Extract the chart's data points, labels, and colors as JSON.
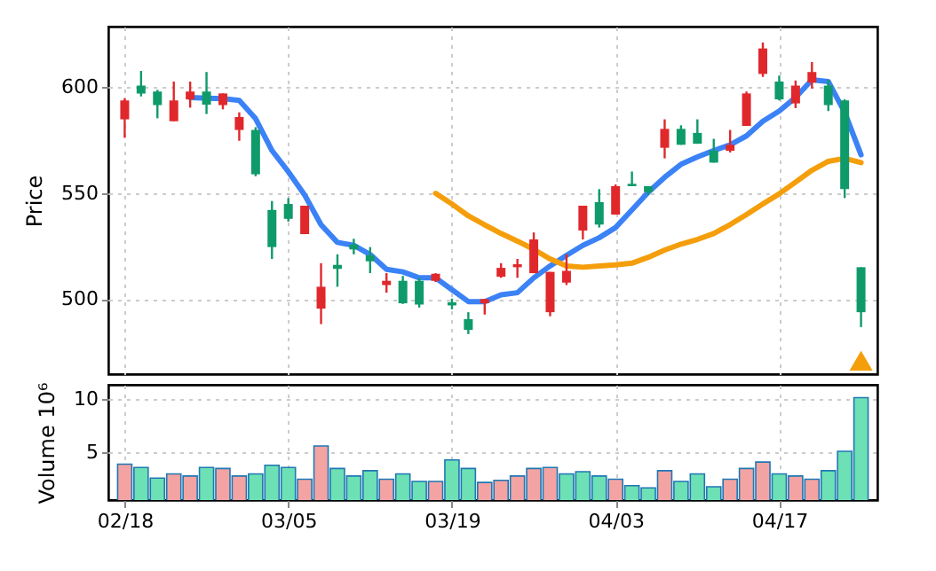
{
  "chart_data": [
    {
      "type": "candlestick",
      "ylabel": "Price",
      "categories": [
        null,
        null,
        null,
        null,
        null,
        null,
        null,
        null,
        null,
        null,
        null,
        null,
        null,
        null,
        null,
        null,
        null,
        null,
        null,
        null,
        null,
        null,
        null,
        null,
        null,
        null,
        null,
        null,
        null,
        null,
        null,
        null,
        null,
        null,
        null,
        null,
        null,
        null,
        null,
        null,
        null,
        null,
        null,
        null,
        null,
        null
      ],
      "ohlc": [
        [
          584.7,
          594.7,
          576.0,
          593.6
        ],
        [
          600.6,
          607.5,
          595.5,
          596.9
        ],
        [
          597.8,
          598.6,
          585.2,
          591.4
        ],
        [
          583.8,
          602.5,
          583.8,
          593.6
        ],
        [
          594.1,
          602.5,
          590.2,
          597.8
        ],
        [
          597.8,
          607.0,
          587.2,
          591.6
        ],
        [
          591.4,
          596.9,
          589.4,
          596.9
        ],
        [
          579.7,
          588.0,
          574.6,
          585.8
        ],
        [
          579.7,
          581.0,
          557.9,
          558.8
        ],
        [
          542.0,
          546.2,
          518.9,
          524.5
        ],
        [
          544.8,
          547.6,
          536.5,
          537.8
        ],
        [
          530.6,
          544.0,
          530.6,
          544.0
        ],
        [
          495.5,
          516.9,
          488.2,
          505.8
        ],
        [
          516.1,
          521.1,
          505.8,
          514.2
        ],
        [
          525.6,
          528.4,
          521.1,
          523.4
        ],
        [
          520.6,
          524.5,
          512.2,
          517.8
        ],
        [
          506.6,
          512.2,
          503.0,
          508.6
        ],
        [
          508.6,
          510.9,
          497.7,
          498.0
        ],
        [
          508.6,
          510.0,
          496.0,
          497.4
        ],
        [
          508.6,
          512.2,
          508.0,
          511.9
        ],
        [
          498.5,
          500.2,
          495.2,
          497.0
        ],
        [
          490.5,
          493.8,
          483.5,
          485.5
        ],
        [
          498.0,
          500.0,
          492.7,
          500.0
        ],
        [
          510.5,
          516.9,
          510.0,
          514.7
        ],
        [
          515.0,
          518.9,
          510.0,
          516.4
        ],
        [
          512.2,
          531.4,
          512.2,
          528.1
        ],
        [
          493.8,
          512.8,
          491.9,
          512.8
        ],
        [
          507.7,
          521.1,
          506.6,
          513.3
        ],
        [
          532.3,
          544.0,
          528.1,
          544.0
        ],
        [
          545.7,
          551.8,
          533.7,
          535.1
        ],
        [
          539.8,
          554.0,
          539.8,
          553.2
        ],
        [
          554.3,
          560.1,
          553.2,
          553.2
        ],
        [
          553.2,
          553.2,
          549.0,
          550.4
        ],
        [
          571.3,
          584.7,
          566.3,
          580.2
        ],
        [
          580.2,
          581.9,
          572.7,
          572.7
        ],
        [
          578.3,
          584.7,
          573.2,
          573.2
        ],
        [
          569.9,
          575.5,
          564.3,
          564.3
        ],
        [
          569.9,
          579.7,
          569.1,
          572.7
        ],
        [
          581.6,
          597.8,
          581.6,
          596.9
        ],
        [
          606.1,
          620.9,
          604.7,
          618.1
        ],
        [
          602.5,
          605.3,
          593.6,
          594.1
        ],
        [
          592.2,
          603.0,
          590.0,
          600.6
        ],
        [
          602.0,
          611.7,
          599.2,
          607.0
        ],
        [
          600.6,
          603.3,
          588.6,
          591.4
        ],
        [
          593.6,
          594.1,
          547.6,
          551.8
        ],
        [
          515.0,
          515.0,
          486.8,
          493.8
        ]
      ],
      "colors": [
        "#e0282c",
        "#0f9a6a",
        "#0f9a6a",
        "#e0282c",
        "#e0282c",
        "#0f9a6a",
        "#e0282c",
        "#e0282c",
        "#0f9a6a",
        "#0f9a6a",
        "#0f9a6a",
        "#e0282c",
        "#e0282c",
        "#0f9a6a",
        "#0f9a6a",
        "#0f9a6a",
        "#e0282c",
        "#0f9a6a",
        "#0f9a6a",
        "#e0282c",
        "#0f9a6a",
        "#0f9a6a",
        "#e0282c",
        "#e0282c",
        "#e0282c",
        "#e0282c",
        "#e0282c",
        "#e0282c",
        "#e0282c",
        "#0f9a6a",
        "#e0282c",
        "#0f9a6a",
        "#0f9a6a",
        "#e0282c",
        "#0f9a6a",
        "#0f9a6a",
        "#0f9a6a",
        "#e0282c",
        "#e0282c",
        "#e0282c",
        "#0f9a6a",
        "#e0282c",
        "#e0282c",
        "#0f9a6a",
        "#0f9a6a",
        "#0f9a6a"
      ],
      "series": [
        {
          "type": "line",
          "color": "#3b82f6",
          "values": [
            null,
            null,
            null,
            null,
            595,
            594.7,
            594.5,
            593.6,
            585,
            570,
            560,
            549,
            535,
            526.7,
            525.3,
            521,
            514,
            512.8,
            510,
            510,
            504.4,
            498.8,
            498.8,
            502,
            503,
            510,
            515.6,
            520.6,
            525.3,
            528.9,
            533.7,
            542,
            550.4,
            557.4,
            563.5,
            567,
            570,
            572.7,
            576.9,
            583.8,
            588.6,
            595,
            603.3,
            602.5,
            588,
            568
          ]
        },
        {
          "type": "line",
          "color": "#f59e0b",
          "values": [
            null,
            null,
            null,
            null,
            null,
            null,
            null,
            null,
            null,
            null,
            null,
            null,
            null,
            null,
            null,
            null,
            null,
            null,
            null,
            549.8,
            544.8,
            539.2,
            535,
            530.9,
            527.3,
            523.4,
            518.9,
            515.6,
            515,
            515.6,
            516.1,
            516.9,
            519.7,
            523.1,
            525.9,
            528.1,
            530.9,
            535.1,
            539.8,
            544.8,
            549.6,
            555.1,
            560.7,
            564.9,
            566.3,
            564.3
          ]
        },
        {
          "type": "scatter",
          "color": "#f59e0b",
          "marker": "triangle",
          "values": [
            null,
            null,
            null,
            null,
            null,
            null,
            null,
            null,
            null,
            null,
            null,
            null,
            null,
            null,
            null,
            null,
            null,
            null,
            null,
            null,
            null,
            null,
            null,
            null,
            null,
            null,
            null,
            null,
            null,
            null,
            null,
            null,
            null,
            null,
            null,
            null,
            null,
            null,
            null,
            null,
            null,
            null,
            null,
            null,
            null,
            471
          ]
        }
      ],
      "ylim": [
        464.6,
        628.4
      ],
      "yticks": [
        500,
        550,
        600
      ],
      "grid": true,
      "tick_labels": "y"
    },
    {
      "type": "bar",
      "ylabel": "Volume  10⁶",
      "categories": [
        "02/18",
        null,
        null,
        null,
        null,
        null,
        null,
        null,
        null,
        null,
        "03/05",
        null,
        null,
        null,
        null,
        null,
        null,
        null,
        null,
        null,
        "03/19",
        null,
        null,
        null,
        null,
        null,
        null,
        null,
        null,
        null,
        "04/03",
        null,
        null,
        null,
        null,
        null,
        null,
        null,
        null,
        null,
        "04/17",
        null,
        null,
        null,
        null,
        null
      ],
      "values": [
        3.9,
        3.6,
        2.6,
        3.0,
        2.8,
        3.6,
        3.5,
        2.8,
        3.0,
        3.8,
        3.6,
        2.5,
        5.6,
        3.5,
        2.8,
        3.3,
        2.5,
        3.0,
        2.3,
        2.3,
        4.3,
        3.5,
        2.2,
        2.4,
        2.8,
        3.5,
        3.6,
        3.0,
        3.2,
        2.8,
        2.5,
        1.9,
        1.7,
        3.3,
        2.3,
        3.0,
        1.8,
        2.5,
        3.5,
        4.1,
        3.0,
        2.8,
        2.5,
        3.3,
        5.1,
        10.1
      ],
      "colors": [
        "#f4a3a3",
        "#6de0b5",
        "#6de0b5",
        "#f4a3a3",
        "#f4a3a3",
        "#6de0b5",
        "#f4a3a3",
        "#f4a3a3",
        "#6de0b5",
        "#6de0b5",
        "#6de0b5",
        "#f4a3a3",
        "#f4a3a3",
        "#6de0b5",
        "#6de0b5",
        "#6de0b5",
        "#f4a3a3",
        "#6de0b5",
        "#6de0b5",
        "#f4a3a3",
        "#6de0b5",
        "#6de0b5",
        "#f4a3a3",
        "#f4a3a3",
        "#f4a3a3",
        "#f4a3a3",
        "#f4a3a3",
        "#6de0b5",
        "#6de0b5",
        "#6de0b5",
        "#f4a3a3",
        "#6de0b5",
        "#6de0b5",
        "#f4a3a3",
        "#6de0b5",
        "#6de0b5",
        "#6de0b5",
        "#f4a3a3",
        "#f4a3a3",
        "#f4a3a3",
        "#6de0b5",
        "#f4a3a3",
        "#f4a3a3",
        "#6de0b5",
        "#6de0b5",
        "#6de0b5"
      ],
      "ylim": [
        0.56,
        11.3
      ],
      "yticks": [
        5,
        10
      ],
      "grid": true
    }
  ]
}
